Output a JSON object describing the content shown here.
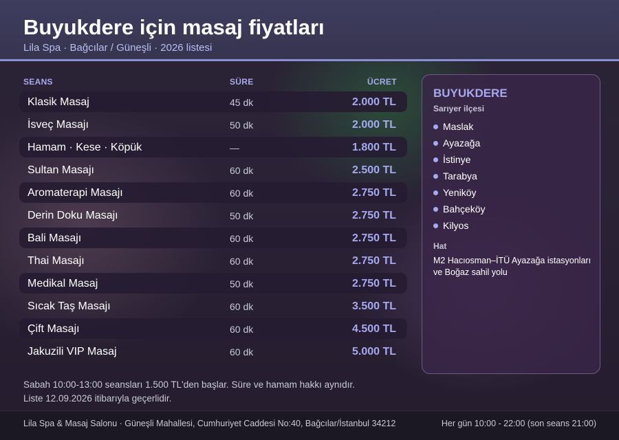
{
  "header": {
    "title": "Buyukdere için masaj fiyatları",
    "subtitle": "Lila Spa · Bağcılar / Güneşli · 2026 listesi"
  },
  "table": {
    "columns": [
      "SEANS",
      "SÜRE",
      "ÜCRET"
    ],
    "rows": [
      {
        "name": "Klasik Masaj",
        "duration": "45 dk",
        "price": "2.000 TL"
      },
      {
        "name": "İsveç Masajı",
        "duration": "50 dk",
        "price": "2.000 TL"
      },
      {
        "name": "Hamam · Kese · Köpük",
        "duration": "—",
        "price": "1.800 TL"
      },
      {
        "name": "Sultan Masajı",
        "duration": "60 dk",
        "price": "2.500 TL"
      },
      {
        "name": "Aromaterapi Masajı",
        "duration": "60 dk",
        "price": "2.750 TL"
      },
      {
        "name": "Derin Doku Masajı",
        "duration": "50 dk",
        "price": "2.750 TL"
      },
      {
        "name": "Bali Masajı",
        "duration": "60 dk",
        "price": "2.750 TL"
      },
      {
        "name": "Thai Masajı",
        "duration": "60 dk",
        "price": "2.750 TL"
      },
      {
        "name": "Medikal Masaj",
        "duration": "50 dk",
        "price": "2.750 TL"
      },
      {
        "name": "Sıcak Taş Masajı",
        "duration": "60 dk",
        "price": "3.500 TL"
      },
      {
        "name": "Çift Masajı",
        "duration": "60 dk",
        "price": "4.500 TL"
      },
      {
        "name": "Jakuzili VIP Masaj",
        "duration": "60 dk",
        "price": "5.000 TL"
      }
    ]
  },
  "panel": {
    "title": "BUYUKDERE",
    "subtitle": "Sarıyer ilçesi",
    "districts": [
      "Maslak",
      "Ayazağa",
      "İstinye",
      "Tarabya",
      "Yeniköy",
      "Bahçeköy",
      "Kilyos"
    ],
    "line_heading": "Hat",
    "line_text": "M2 Hacıosman–İTÜ Ayazağa istasyonları ve Boğaz sahil yolu"
  },
  "notes": [
    "Sabah 10:00-13:00 seansları 1.500 TL'den başlar. Süre ve hamam hakkı aynıdır.",
    "Liste 12.09.2026 itibarıyla geçerlidir."
  ],
  "footer": {
    "address": "Lila Spa & Masaj Salonu · Güneşli Mahallesi, Cumhuriyet Caddesi No:40, Bağcılar/İstanbul 34212",
    "hours": "Her gün 10:00 - 22:00 (son seans 21:00)"
  },
  "colors": {
    "accent": "#a6a9f0",
    "header_bg": "#3f3d5e",
    "header_border": "#8d8fd6"
  }
}
